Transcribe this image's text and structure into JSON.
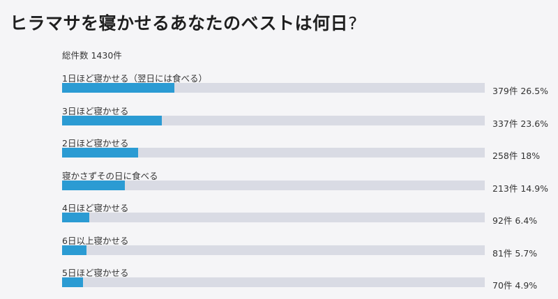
{
  "poll": {
    "title": "ヒラマサを寝かせるあなたのベストは何日",
    "title_mark": "?",
    "total_label": "総件数 1430件",
    "fill_color": "#2b9bd3",
    "track_color": "#d9dbe4",
    "options": [
      {
        "label": "1日ほど寝かせる（翌日には食べる）",
        "count": "379件",
        "percent": "26.5%",
        "share": 26.5
      },
      {
        "label": "3日ほど寝かせる",
        "count": "337件",
        "percent": "23.6%",
        "share": 23.6
      },
      {
        "label": "2日ほど寝かせる",
        "count": "258件",
        "percent": "18%",
        "share": 18
      },
      {
        "label": "寝かさずその日に食べる",
        "count": "213件",
        "percent": "14.9%",
        "share": 14.9
      },
      {
        "label": "4日ほど寝かせる",
        "count": "92件",
        "percent": "6.4%",
        "share": 6.4
      },
      {
        "label": "6日以上寝かせる",
        "count": "81件",
        "percent": "5.7%",
        "share": 5.7
      },
      {
        "label": "5日ほど寝かせる",
        "count": "70件",
        "percent": "4.9%",
        "share": 4.9
      }
    ]
  }
}
